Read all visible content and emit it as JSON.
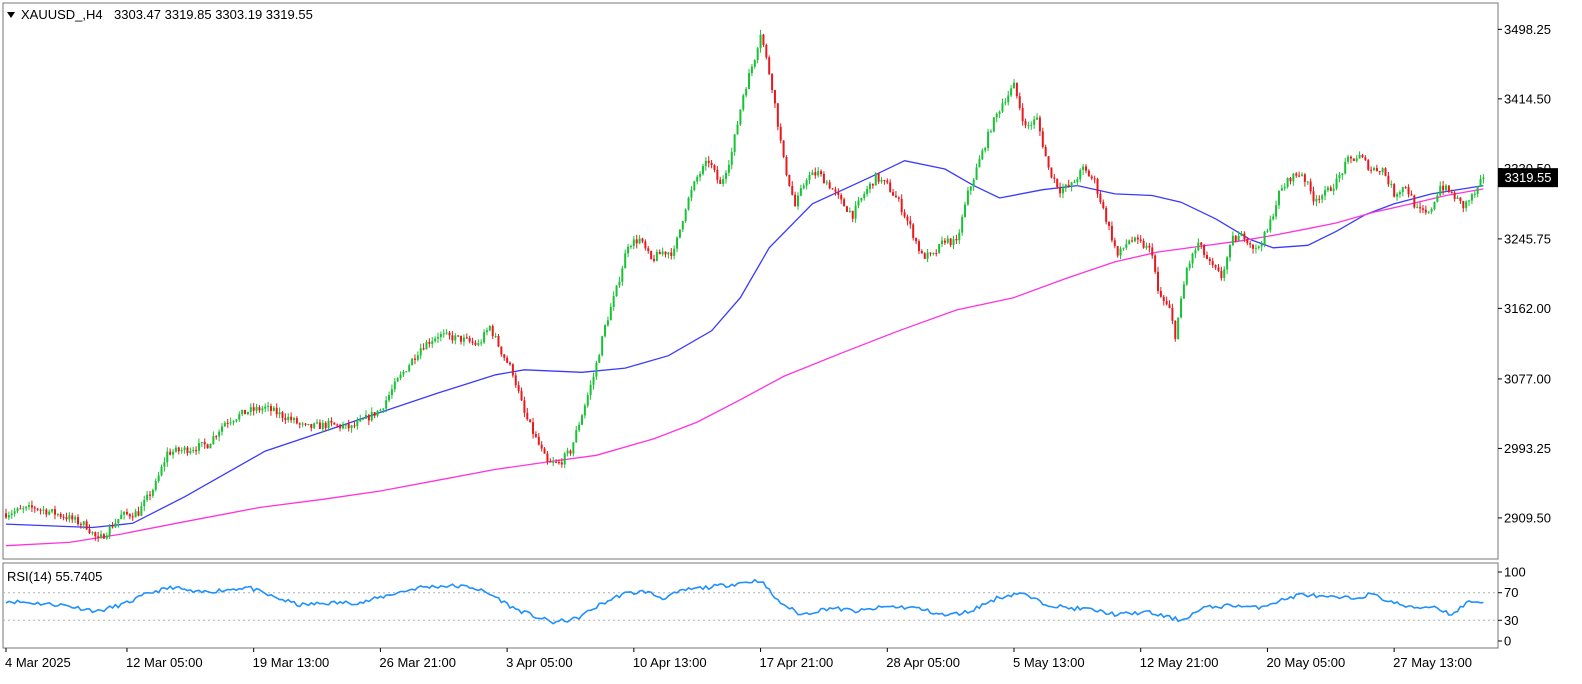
{
  "chart_data": [
    {
      "type": "candlestick",
      "symbol_label": "XAUUSD_,H4",
      "ohlc_label": "3303.47 3319.85 3303.19 3319.55",
      "last_price": {
        "label": "3319.55",
        "value": 3319.55
      },
      "ylim": [
        2860,
        3530
      ],
      "y_ticks": [
        {
          "label": "3498.25",
          "value": 3498.25
        },
        {
          "label": "3414.50",
          "value": 3414.5
        },
        {
          "label": "3330.50",
          "value": 3330.5
        },
        {
          "label": "3245.75",
          "value": 3245.75
        },
        {
          "label": "3162.00",
          "value": 3162.0
        },
        {
          "label": "3077.00",
          "value": 3077.0
        },
        {
          "label": "2993.25",
          "value": 2993.25
        },
        {
          "label": "2909.50",
          "value": 2909.5
        }
      ],
      "x_ticks": [
        {
          "label": "4 Mar 2025",
          "index": 0
        },
        {
          "label": "12 Mar 05:00",
          "index": 42
        },
        {
          "label": "19 Mar 13:00",
          "index": 86
        },
        {
          "label": "26 Mar 21:00",
          "index": 130
        },
        {
          "label": "3 Apr 05:00",
          "index": 174
        },
        {
          "label": "10 Apr 13:00",
          "index": 218
        },
        {
          "label": "17 Apr 21:00",
          "index": 262
        },
        {
          "label": "28 Apr 05:00",
          "index": 306
        },
        {
          "label": "5 May 13:00",
          "index": 350
        },
        {
          "label": "12 May 21:00",
          "index": 394
        },
        {
          "label": "20 May 05:00",
          "index": 438
        },
        {
          "label": "27 May 13:00",
          "index": 482
        }
      ],
      "close_path": [
        [
          0,
          2915
        ],
        [
          10,
          2922
        ],
        [
          20,
          2912
        ],
        [
          28,
          2900
        ],
        [
          32,
          2882
        ],
        [
          40,
          2912
        ],
        [
          46,
          2916
        ],
        [
          52,
          2950
        ],
        [
          56,
          2988
        ],
        [
          64,
          2993
        ],
        [
          70,
          2998
        ],
        [
          76,
          3025
        ],
        [
          84,
          3038
        ],
        [
          90,
          3042
        ],
        [
          98,
          3030
        ],
        [
          104,
          3018
        ],
        [
          112,
          3022
        ],
        [
          120,
          3018
        ],
        [
          130,
          3040
        ],
        [
          136,
          3075
        ],
        [
          144,
          3115
        ],
        [
          150,
          3130
        ],
        [
          158,
          3125
        ],
        [
          164,
          3118
        ],
        [
          168,
          3140
        ],
        [
          172,
          3110
        ],
        [
          176,
          3085
        ],
        [
          180,
          3035
        ],
        [
          184,
          3005
        ],
        [
          188,
          2975
        ],
        [
          192,
          2975
        ],
        [
          196,
          2990
        ],
        [
          200,
          3035
        ],
        [
          204,
          3080
        ],
        [
          208,
          3140
        ],
        [
          212,
          3185
        ],
        [
          216,
          3240
        ],
        [
          220,
          3245
        ],
        [
          224,
          3220
        ],
        [
          228,
          3230
        ],
        [
          232,
          3230
        ],
        [
          236,
          3285
        ],
        [
          240,
          3320
        ],
        [
          244,
          3340
        ],
        [
          248,
          3310
        ],
        [
          252,
          3350
        ],
        [
          256,
          3420
        ],
        [
          260,
          3465
        ],
        [
          262,
          3495
        ],
        [
          266,
          3430
        ],
        [
          270,
          3340
        ],
        [
          274,
          3285
        ],
        [
          278,
          3320
        ],
        [
          282,
          3325
        ],
        [
          286,
          3310
        ],
        [
          290,
          3290
        ],
        [
          294,
          3275
        ],
        [
          298,
          3300
        ],
        [
          302,
          3320
        ],
        [
          306,
          3310
        ],
        [
          310,
          3290
        ],
        [
          314,
          3260
        ],
        [
          318,
          3225
        ],
        [
          322,
          3225
        ],
        [
          326,
          3245
        ],
        [
          330,
          3240
        ],
        [
          334,
          3300
        ],
        [
          338,
          3340
        ],
        [
          342,
          3380
        ],
        [
          346,
          3410
        ],
        [
          350,
          3430
        ],
        [
          354,
          3380
        ],
        [
          358,
          3390
        ],
        [
          362,
          3330
        ],
        [
          366,
          3305
        ],
        [
          370,
          3310
        ],
        [
          374,
          3330
        ],
        [
          378,
          3315
        ],
        [
          382,
          3270
        ],
        [
          386,
          3225
        ],
        [
          390,
          3245
        ],
        [
          394,
          3240
        ],
        [
          398,
          3230
        ],
        [
          400,
          3180
        ],
        [
          404,
          3160
        ],
        [
          406,
          3130
        ],
        [
          410,
          3210
        ],
        [
          414,
          3240
        ],
        [
          418,
          3215
        ],
        [
          422,
          3200
        ],
        [
          426,
          3245
        ],
        [
          430,
          3250
        ],
        [
          434,
          3232
        ],
        [
          438,
          3255
        ],
        [
          442,
          3300
        ],
        [
          446,
          3320
        ],
        [
          450,
          3325
        ],
        [
          454,
          3295
        ],
        [
          458,
          3300
        ],
        [
          462,
          3315
        ],
        [
          466,
          3340
        ],
        [
          470,
          3345
        ],
        [
          474,
          3330
        ],
        [
          478,
          3330
        ],
        [
          482,
          3300
        ],
        [
          486,
          3310
        ],
        [
          490,
          3280
        ],
        [
          494,
          3275
        ],
        [
          498,
          3310
        ],
        [
          502,
          3300
        ],
        [
          506,
          3285
        ],
        [
          510,
          3300
        ],
        [
          513,
          3319.55
        ]
      ],
      "series": [
        {
          "name": "",
          "type": "moving-average",
          "color": "#3a3aff",
          "points": [
            [
              0,
              2902
            ],
            [
              30,
              2898
            ],
            [
              44,
              2903
            ],
            [
              62,
              2935
            ],
            [
              90,
              2990
            ],
            [
              120,
              3025
            ],
            [
              150,
              3060
            ],
            [
              170,
              3082
            ],
            [
              180,
              3088
            ],
            [
              200,
              3085
            ],
            [
              215,
              3090
            ],
            [
              230,
              3105
            ],
            [
              245,
              3135
            ],
            [
              255,
              3175
            ],
            [
              265,
              3235
            ],
            [
              280,
              3288
            ],
            [
              300,
              3320
            ],
            [
              312,
              3340
            ],
            [
              326,
              3330
            ],
            [
              336,
              3310
            ],
            [
              345,
              3295
            ],
            [
              360,
              3305
            ],
            [
              372,
              3310
            ],
            [
              385,
              3300
            ],
            [
              398,
              3298
            ],
            [
              408,
              3290
            ],
            [
              420,
              3270
            ],
            [
              432,
              3245
            ],
            [
              440,
              3235
            ],
            [
              452,
              3238
            ],
            [
              462,
              3255
            ],
            [
              472,
              3275
            ],
            [
              482,
              3288
            ],
            [
              495,
              3300
            ],
            [
              513,
              3310
            ]
          ]
        },
        {
          "name": "",
          "type": "moving-average",
          "color": "#ff33dd",
          "points": [
            [
              0,
              2876
            ],
            [
              22,
              2880
            ],
            [
              40,
              2890
            ],
            [
              62,
              2905
            ],
            [
              88,
              2922
            ],
            [
              110,
              2932
            ],
            [
              130,
              2942
            ],
            [
              150,
              2955
            ],
            [
              170,
              2968
            ],
            [
              190,
              2978
            ],
            [
              205,
              2985
            ],
            [
              225,
              3005
            ],
            [
              240,
              3025
            ],
            [
              255,
              3052
            ],
            [
              270,
              3080
            ],
            [
              290,
              3108
            ],
            [
              310,
              3135
            ],
            [
              330,
              3160
            ],
            [
              350,
              3175
            ],
            [
              368,
              3198
            ],
            [
              385,
              3218
            ],
            [
              400,
              3230
            ],
            [
              415,
              3237
            ],
            [
              428,
              3243
            ],
            [
              440,
              3250
            ],
            [
              452,
              3258
            ],
            [
              462,
              3265
            ],
            [
              475,
              3278
            ],
            [
              488,
              3288
            ],
            [
              500,
              3298
            ],
            [
              513,
              3306
            ]
          ]
        }
      ],
      "bar_count": 514
    },
    {
      "type": "line",
      "indicator_label": "RSI(14) 55.7405",
      "value": 55.7405,
      "ylim": [
        0,
        100
      ],
      "levels": [
        70,
        30
      ],
      "y_ticks": [
        {
          "label": "100",
          "value": 100
        },
        {
          "label": "70",
          "value": 70
        },
        {
          "label": "30",
          "value": 30
        },
        {
          "label": "0",
          "value": 0
        }
      ],
      "points": [
        [
          0,
          58
        ],
        [
          10,
          55
        ],
        [
          20,
          52
        ],
        [
          32,
          43
        ],
        [
          42,
          55
        ],
        [
          50,
          70
        ],
        [
          58,
          78
        ],
        [
          66,
          70
        ],
        [
          76,
          74
        ],
        [
          84,
          78
        ],
        [
          92,
          65
        ],
        [
          102,
          52
        ],
        [
          112,
          55
        ],
        [
          124,
          56
        ],
        [
          134,
          68
        ],
        [
          144,
          78
        ],
        [
          154,
          80
        ],
        [
          162,
          78
        ],
        [
          170,
          64
        ],
        [
          176,
          48
        ],
        [
          184,
          35
        ],
        [
          190,
          27
        ],
        [
          198,
          32
        ],
        [
          206,
          52
        ],
        [
          214,
          68
        ],
        [
          222,
          72
        ],
        [
          228,
          62
        ],
        [
          236,
          74
        ],
        [
          244,
          78
        ],
        [
          252,
          82
        ],
        [
          258,
          86
        ],
        [
          262,
          88
        ],
        [
          268,
          58
        ],
        [
          276,
          38
        ],
        [
          286,
          48
        ],
        [
          296,
          43
        ],
        [
          306,
          50
        ],
        [
          316,
          48
        ],
        [
          326,
          37
        ],
        [
          334,
          42
        ],
        [
          344,
          62
        ],
        [
          352,
          70
        ],
        [
          360,
          55
        ],
        [
          368,
          48
        ],
        [
          376,
          46
        ],
        [
          386,
          38
        ],
        [
          396,
          42
        ],
        [
          404,
          34
        ],
        [
          408,
          30
        ],
        [
          416,
          48
        ],
        [
          426,
          52
        ],
        [
          434,
          48
        ],
        [
          442,
          58
        ],
        [
          450,
          68
        ],
        [
          458,
          63
        ],
        [
          468,
          62
        ],
        [
          474,
          68
        ],
        [
          480,
          58
        ],
        [
          488,
          48
        ],
        [
          496,
          50
        ],
        [
          502,
          38
        ],
        [
          508,
          58
        ],
        [
          513,
          56
        ]
      ]
    }
  ]
}
